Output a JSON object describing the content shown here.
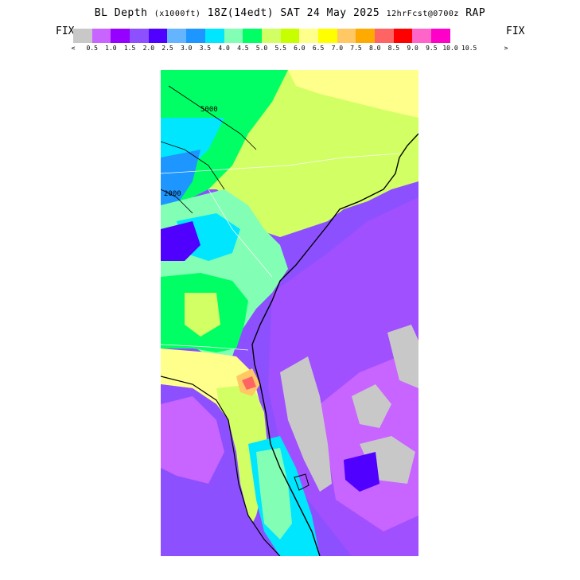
{
  "title": {
    "product": "BL Depth",
    "units": "(x1000ft)",
    "valid_time": "18Z(14edt) SAT 24 May 2025",
    "forecast": "12hrFcst@0700z",
    "model": "RAP"
  },
  "fix_label": "FIX",
  "legend": {
    "below_arrow": "<",
    "above_arrow": ">",
    "colors": [
      "#c8c8c8",
      "#c864ff",
      "#9600ff",
      "#8c50ff",
      "#5000ff",
      "#64b4ff",
      "#1e96ff",
      "#00e6ff",
      "#82ffb4",
      "#00ff64",
      "#d2ff64",
      "#c8ff00",
      "#ffff8c",
      "#ffff00",
      "#ffc864",
      "#ffaa00",
      "#ff6464",
      "#ff0000",
      "#ff64c8",
      "#ff00c8"
    ],
    "ticks": [
      "0.5",
      "1.0",
      "1.5",
      "2.0",
      "2.5",
      "3.0",
      "3.5",
      "4.0",
      "4.5",
      "5.0",
      "5.5",
      "6.0",
      "6.5",
      "7.0",
      "7.5",
      "8.0",
      "8.5",
      "9.0",
      "9.5",
      "10.0",
      "10.5"
    ]
  },
  "map": {
    "region": "Southeast US / Florida",
    "contour_labels": [
      "5000",
      "2000"
    ]
  }
}
